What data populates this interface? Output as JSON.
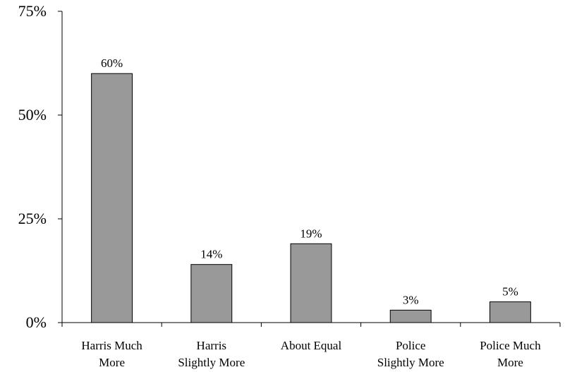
{
  "chart_data": {
    "type": "bar",
    "title": "",
    "xlabel": "",
    "ylabel": "",
    "categories": [
      [
        "Harris Much",
        "More"
      ],
      [
        "Harris",
        "Slightly More"
      ],
      [
        "About Equal"
      ],
      [
        "Police",
        "Slightly More"
      ],
      [
        "Police Much",
        "More"
      ]
    ],
    "values": [
      60,
      14,
      19,
      3,
      5
    ],
    "data_labels": [
      "60%",
      "14%",
      "19%",
      "3%",
      "5%"
    ],
    "ylim": [
      0,
      75
    ],
    "yticks": [
      0,
      25,
      50,
      75
    ],
    "ytick_labels": [
      "0%",
      "25%",
      "50%",
      "75%"
    ],
    "grid": false,
    "legend": "none",
    "colors": {
      "bar_fill": "#999999",
      "bar_stroke": "#000000",
      "axis": "#000000"
    }
  }
}
